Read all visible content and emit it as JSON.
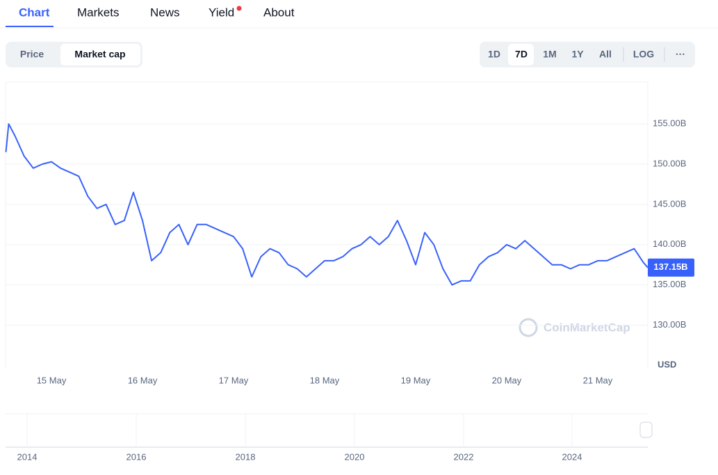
{
  "tabs": [
    "Chart",
    "Markets",
    "News",
    "Yield",
    "About"
  ],
  "toggle": [
    "Price",
    "Market cap"
  ],
  "ranges": [
    "1D",
    "7D",
    "1M",
    "1Y",
    "All",
    "LOG",
    "···"
  ],
  "watermark": "CoinMarketCap",
  "currency": "USD",
  "navigator_years": [
    "2014",
    "2016",
    "2018",
    "2020",
    "2022",
    "2024"
  ],
  "chart_data": {
    "type": "line",
    "color": "#3861fb",
    "grid": true,
    "xlim": [
      14.496,
      21.55
    ],
    "ylim": [
      124.6,
      160.2
    ],
    "xticks": [
      {
        "value": 15,
        "label": "15 May"
      },
      {
        "value": 16,
        "label": "16 May"
      },
      {
        "value": 17,
        "label": "17 May"
      },
      {
        "value": 18,
        "label": "18 May"
      },
      {
        "value": 19,
        "label": "19 May"
      },
      {
        "value": 20,
        "label": "20 May"
      },
      {
        "value": 21,
        "label": "21 May"
      }
    ],
    "yticks": [
      {
        "value": 130,
        "label": "130.00B"
      },
      {
        "value": 135,
        "label": "135.00B"
      },
      {
        "value": 140,
        "label": "140.00B"
      },
      {
        "value": 145,
        "label": "145.00B"
      },
      {
        "value": 150,
        "label": "150.00B"
      },
      {
        "value": 155,
        "label": "155.00B"
      }
    ],
    "x": [
      14.5,
      14.53,
      14.6,
      14.7,
      14.8,
      14.9,
      15.0,
      15.1,
      15.2,
      15.3,
      15.4,
      15.5,
      15.6,
      15.7,
      15.8,
      15.9,
      16.0,
      16.1,
      16.2,
      16.3,
      16.4,
      16.5,
      16.6,
      16.7,
      16.8,
      16.9,
      17.0,
      17.1,
      17.2,
      17.3,
      17.4,
      17.5,
      17.6,
      17.7,
      17.8,
      17.9,
      18.0,
      18.1,
      18.2,
      18.3,
      18.4,
      18.5,
      18.6,
      18.7,
      18.8,
      18.9,
      19.0,
      19.1,
      19.2,
      19.3,
      19.4,
      19.5,
      19.6,
      19.7,
      19.8,
      19.9,
      20.0,
      20.1,
      20.2,
      20.3,
      20.4,
      20.5,
      20.6,
      20.7,
      20.8,
      20.9,
      21.0,
      21.1,
      21.2,
      21.3,
      21.4,
      21.5,
      21.55
    ],
    "values": [
      151.5,
      155,
      153.5,
      151,
      149.5,
      150,
      150.3,
      149.5,
      149,
      148.5,
      146,
      144.5,
      145,
      142.5,
      143,
      146.5,
      143,
      138,
      139,
      141.5,
      142.5,
      140,
      142.5,
      142.5,
      142,
      141.5,
      141,
      139.5,
      136,
      138.5,
      139.5,
      139,
      137.5,
      137,
      136,
      137,
      138,
      138,
      138.5,
      139.5,
      140,
      141,
      140,
      141,
      143,
      140.5,
      137.5,
      141.5,
      140,
      137,
      135,
      135.5,
      135.5,
      137.5,
      138.5,
      139,
      140,
      139.5,
      140.5,
      139.5,
      138.5,
      137.5,
      137.5,
      137,
      137.5,
      137.5,
      138,
      138,
      138.5,
      139,
      139.5,
      137.8,
      137.15
    ],
    "value_labels": {
      "72": "137.15B"
    }
  }
}
